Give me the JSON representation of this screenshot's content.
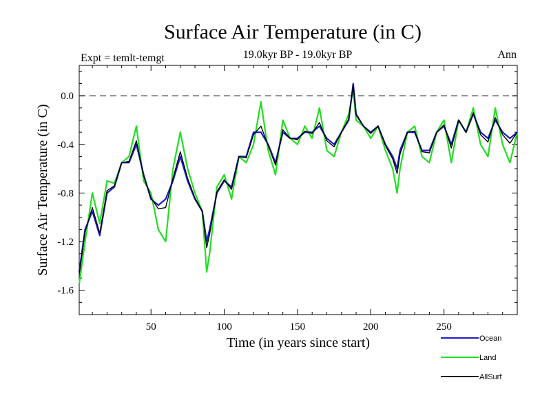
{
  "chart_data": {
    "type": "line",
    "title": "Surface Air Temperature (in C)",
    "subtitle": "19.0kyr BP - 19.0kyr BP",
    "expt_label": "Expt = temlt-temgt",
    "period_label": "Ann",
    "xlabel": "Time (in years since start)",
    "ylabel": "Surface Air Temperature (in C)",
    "xlim": [
      1,
      300
    ],
    "ylim": [
      -1.8,
      0.25
    ],
    "x_ticks": [
      50,
      100,
      150,
      200,
      250
    ],
    "y_ticks": [
      0.0,
      -0.4,
      -0.8,
      -1.2,
      -1.6
    ],
    "y_tick_labels": [
      "0.0",
      "-0.4",
      "-0.8",
      "-1.2",
      "-1.6"
    ],
    "reference_line": 0.0,
    "series": [
      {
        "name": "Land",
        "color": "#22dd22",
        "x": [
          1,
          5,
          10,
          15,
          20,
          25,
          30,
          35,
          40,
          45,
          50,
          55,
          60,
          65,
          70,
          75,
          80,
          85,
          88,
          90,
          95,
          100,
          105,
          110,
          115,
          120,
          125,
          130,
          135,
          140,
          145,
          150,
          155,
          160,
          165,
          170,
          175,
          180,
          185,
          188,
          190,
          195,
          200,
          205,
          210,
          215,
          218,
          220,
          225,
          230,
          235,
          240,
          245,
          250,
          255,
          260,
          265,
          270,
          275,
          280,
          285,
          290,
          295,
          300
        ],
        "values": [
          -1.55,
          -1.2,
          -0.8,
          -1.05,
          -0.7,
          -0.72,
          -0.55,
          -0.5,
          -0.25,
          -0.7,
          -0.8,
          -1.1,
          -1.2,
          -0.6,
          -0.3,
          -0.6,
          -0.8,
          -0.95,
          -1.45,
          -1.3,
          -0.75,
          -0.65,
          -0.85,
          -0.5,
          -0.55,
          -0.4,
          -0.05,
          -0.45,
          -0.65,
          -0.2,
          -0.35,
          -0.4,
          -0.25,
          -0.35,
          -0.1,
          -0.45,
          -0.5,
          -0.3,
          -0.15,
          0.05,
          -0.2,
          -0.25,
          -0.35,
          -0.25,
          -0.45,
          -0.6,
          -0.8,
          -0.6,
          -0.3,
          -0.25,
          -0.5,
          -0.55,
          -0.3,
          -0.2,
          -0.55,
          -0.2,
          -0.3,
          -0.1,
          -0.4,
          -0.5,
          -0.1,
          -0.4,
          -0.55,
          -0.3
        ]
      },
      {
        "name": "Ocean",
        "color": "#1a1acc",
        "x": [
          1,
          5,
          10,
          15,
          20,
          25,
          30,
          35,
          40,
          45,
          50,
          55,
          60,
          65,
          70,
          75,
          80,
          85,
          88,
          90,
          95,
          100,
          105,
          110,
          115,
          120,
          125,
          130,
          135,
          140,
          145,
          150,
          155,
          160,
          165,
          170,
          175,
          180,
          185,
          188,
          190,
          195,
          200,
          205,
          210,
          215,
          218,
          220,
          225,
          230,
          235,
          240,
          245,
          250,
          255,
          260,
          265,
          270,
          275,
          280,
          285,
          290,
          295,
          300
        ],
        "values": [
          -1.45,
          -1.1,
          -0.95,
          -1.15,
          -0.8,
          -0.75,
          -0.55,
          -0.55,
          -0.4,
          -0.65,
          -0.85,
          -0.9,
          -0.85,
          -0.7,
          -0.5,
          -0.7,
          -0.85,
          -0.95,
          -1.2,
          -1.1,
          -0.8,
          -0.7,
          -0.75,
          -0.5,
          -0.5,
          -0.3,
          -0.3,
          -0.4,
          -0.55,
          -0.3,
          -0.35,
          -0.35,
          -0.3,
          -0.3,
          -0.25,
          -0.35,
          -0.4,
          -0.3,
          -0.2,
          0.1,
          -0.15,
          -0.25,
          -0.3,
          -0.25,
          -0.4,
          -0.5,
          -0.6,
          -0.45,
          -0.3,
          -0.3,
          -0.45,
          -0.45,
          -0.3,
          -0.25,
          -0.4,
          -0.2,
          -0.3,
          -0.15,
          -0.3,
          -0.35,
          -0.2,
          -0.3,
          -0.35,
          -0.3
        ]
      },
      {
        "name": "AllSurf",
        "color": "#000000",
        "x": [
          1,
          5,
          10,
          15,
          20,
          25,
          30,
          35,
          40,
          45,
          50,
          55,
          60,
          65,
          70,
          75,
          80,
          85,
          88,
          90,
          95,
          100,
          105,
          110,
          115,
          120,
          125,
          130,
          135,
          140,
          145,
          150,
          155,
          160,
          165,
          170,
          175,
          180,
          185,
          188,
          190,
          195,
          200,
          205,
          210,
          215,
          218,
          220,
          225,
          230,
          235,
          240,
          245,
          250,
          255,
          260,
          265,
          270,
          275,
          280,
          285,
          290,
          295,
          300
        ],
        "values": [
          -1.47,
          -1.12,
          -0.92,
          -1.13,
          -0.78,
          -0.74,
          -0.55,
          -0.54,
          -0.37,
          -0.66,
          -0.84,
          -0.93,
          -0.92,
          -0.68,
          -0.46,
          -0.68,
          -0.84,
          -0.95,
          -1.25,
          -1.14,
          -0.79,
          -0.69,
          -0.77,
          -0.5,
          -0.51,
          -0.32,
          -0.25,
          -0.41,
          -0.57,
          -0.28,
          -0.35,
          -0.36,
          -0.29,
          -0.31,
          -0.22,
          -0.37,
          -0.42,
          -0.3,
          -0.19,
          0.09,
          -0.16,
          -0.25,
          -0.31,
          -0.25,
          -0.41,
          -0.52,
          -0.64,
          -0.48,
          -0.3,
          -0.29,
          -0.46,
          -0.47,
          -0.3,
          -0.24,
          -0.43,
          -0.2,
          -0.3,
          -0.14,
          -0.32,
          -0.38,
          -0.18,
          -0.32,
          -0.39,
          -0.3
        ]
      }
    ],
    "legend_order": [
      "Ocean",
      "Land",
      "AllSurf"
    ],
    "legend_position": "bottom-right"
  }
}
